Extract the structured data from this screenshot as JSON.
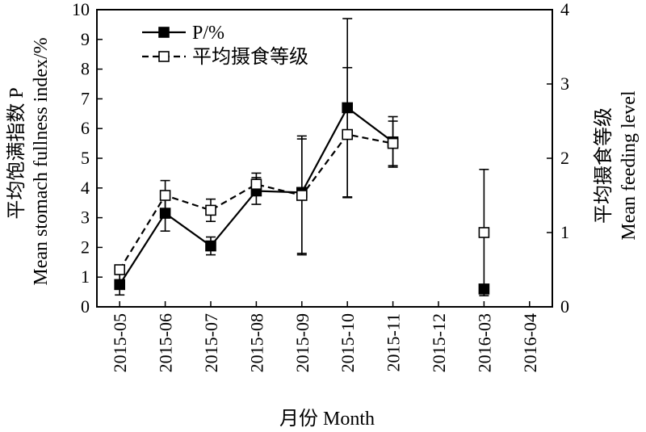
{
  "chart_data": {
    "type": "line",
    "categories": [
      "2015-05",
      "2015-06",
      "2015-07",
      "2015-08",
      "2015-09",
      "2015-10",
      "2015-11",
      "2015-12",
      "2016-03",
      "2016-04"
    ],
    "xlabel": "月份 Month",
    "ylabel_left_cn": "平均饱满指数 P",
    "ylabel_left_en": "Mean stomach fullness index/%",
    "ylabel_right_cn": "平均摄食等级",
    "ylabel_right_en": "Mean feeding level",
    "ylim_left": [
      0,
      10
    ],
    "yticks_left": [
      "0",
      "1",
      "2",
      "3",
      "4",
      "5",
      "6",
      "7",
      "8",
      "9",
      "10"
    ],
    "ylim_right": [
      0,
      4
    ],
    "yticks_right": [
      "0",
      "1",
      "2",
      "3",
      "4"
    ],
    "grid": false,
    "legend_position": "top-left",
    "series": [
      {
        "name": "P/%",
        "axis": "left",
        "line_style": "solid",
        "marker": "filled-square",
        "points": [
          {
            "category": "2015-05",
            "value": 0.75,
            "err_low": 0.35,
            "err_high": 0.35
          },
          {
            "category": "2015-06",
            "value": 3.15,
            "err_low": 0.6,
            "err_high": 0.6
          },
          {
            "category": "2015-07",
            "value": 2.05,
            "err_low": 0.3,
            "err_high": 0.3
          },
          {
            "category": "2015-08",
            "value": 3.9,
            "err_low": 0.45,
            "err_high": 0.45
          },
          {
            "category": "2015-09",
            "value": 3.85,
            "err_low": 2.05,
            "err_high": 1.8
          },
          {
            "category": "2015-10",
            "value": 6.7,
            "err_low": 3.0,
            "err_high": 3.0
          },
          {
            "category": "2015-11",
            "value": 5.55,
            "err_low": 0.85,
            "err_high": 0.85
          },
          {
            "category": "2016-03",
            "value": 0.6,
            "err_low": 0.15,
            "err_high": 0.15
          }
        ]
      },
      {
        "name": "平均摄食等级",
        "axis": "right",
        "line_style": "dashed",
        "marker": "open-square",
        "points": [
          {
            "category": "2015-05",
            "value": 0.5,
            "err_low": 0.0,
            "err_high": 0.0
          },
          {
            "category": "2015-06",
            "value": 1.5,
            "err_low": 0.2,
            "err_high": 0.2
          },
          {
            "category": "2015-07",
            "value": 1.3,
            "err_low": 0.15,
            "err_high": 0.15
          },
          {
            "category": "2015-08",
            "value": 1.65,
            "err_low": 0.15,
            "err_high": 0.15
          },
          {
            "category": "2015-09",
            "value": 1.5,
            "err_low": 0.8,
            "err_high": 0.8
          },
          {
            "category": "2015-10",
            "value": 2.32,
            "err_low": 0.85,
            "err_high": 0.9
          },
          {
            "category": "2015-11",
            "value": 2.2,
            "err_low": 0.3,
            "err_high": 0.3
          },
          {
            "category": "2016-03",
            "value": 1.0,
            "err_low": 0.85,
            "err_high": 0.85
          }
        ]
      }
    ]
  }
}
